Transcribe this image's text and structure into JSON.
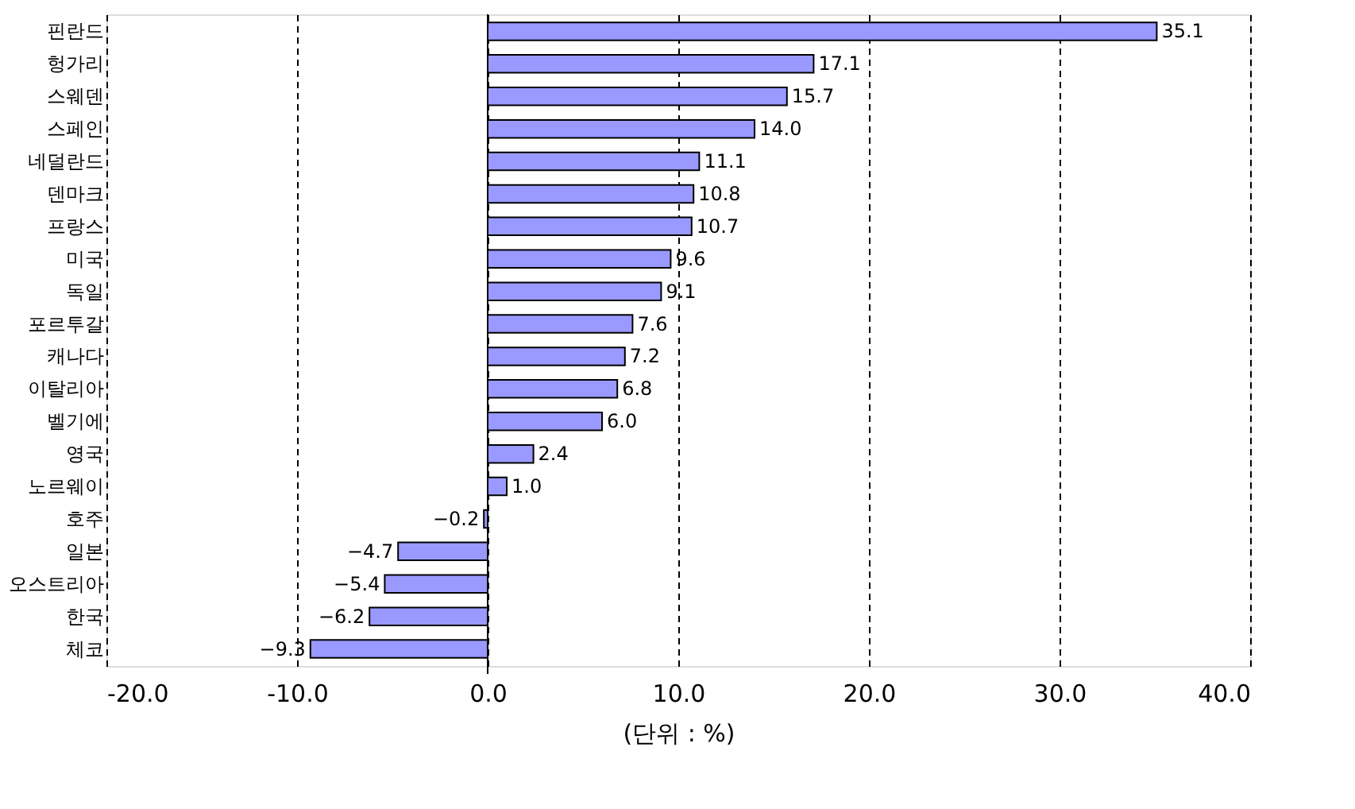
{
  "chart_data": {
    "type": "bar",
    "orientation": "horizontal",
    "xlabel": "(단위 : %)",
    "categories": [
      "핀란드",
      "헝가리",
      "스웨덴",
      "스페인",
      "네덜란드",
      "덴마크",
      "프랑스",
      "미국",
      "독일",
      "포르투갈",
      "캐나다",
      "이탈리아",
      "벨기에",
      "영국",
      "노르웨이",
      "호주",
      "일본",
      "오스트리아",
      "한국",
      "체코"
    ],
    "values": [
      35.1,
      17.1,
      15.7,
      14.0,
      11.1,
      10.8,
      10.7,
      9.6,
      9.1,
      7.6,
      7.2,
      6.8,
      6.0,
      2.4,
      1.0,
      -0.2,
      -4.7,
      -5.4,
      -6.2,
      -9.3
    ],
    "color": "#9999ff",
    "xlim": [
      -20,
      40
    ],
    "xticks": [
      {
        "value": -20,
        "label": "-20.0"
      },
      {
        "value": -10,
        "label": "-10.0"
      },
      {
        "value": 0,
        "label": "0.0"
      },
      {
        "value": 10,
        "label": "10.0"
      },
      {
        "value": 20,
        "label": "20.0"
      },
      {
        "value": 30,
        "label": "30.0"
      },
      {
        "value": 40,
        "label": "40.0"
      }
    ],
    "value_labels": [
      "35.1",
      "17.1",
      "15.7",
      "14.0",
      "11.1",
      "10.8",
      "10.7",
      "9.6",
      "9.1",
      "7.6",
      "7.2",
      "6.8",
      "6.0",
      "2.4",
      "1.0",
      "−0.2",
      "−4.7",
      "−5.4",
      "−6.2",
      "−9.3"
    ],
    "grid": "x"
  }
}
